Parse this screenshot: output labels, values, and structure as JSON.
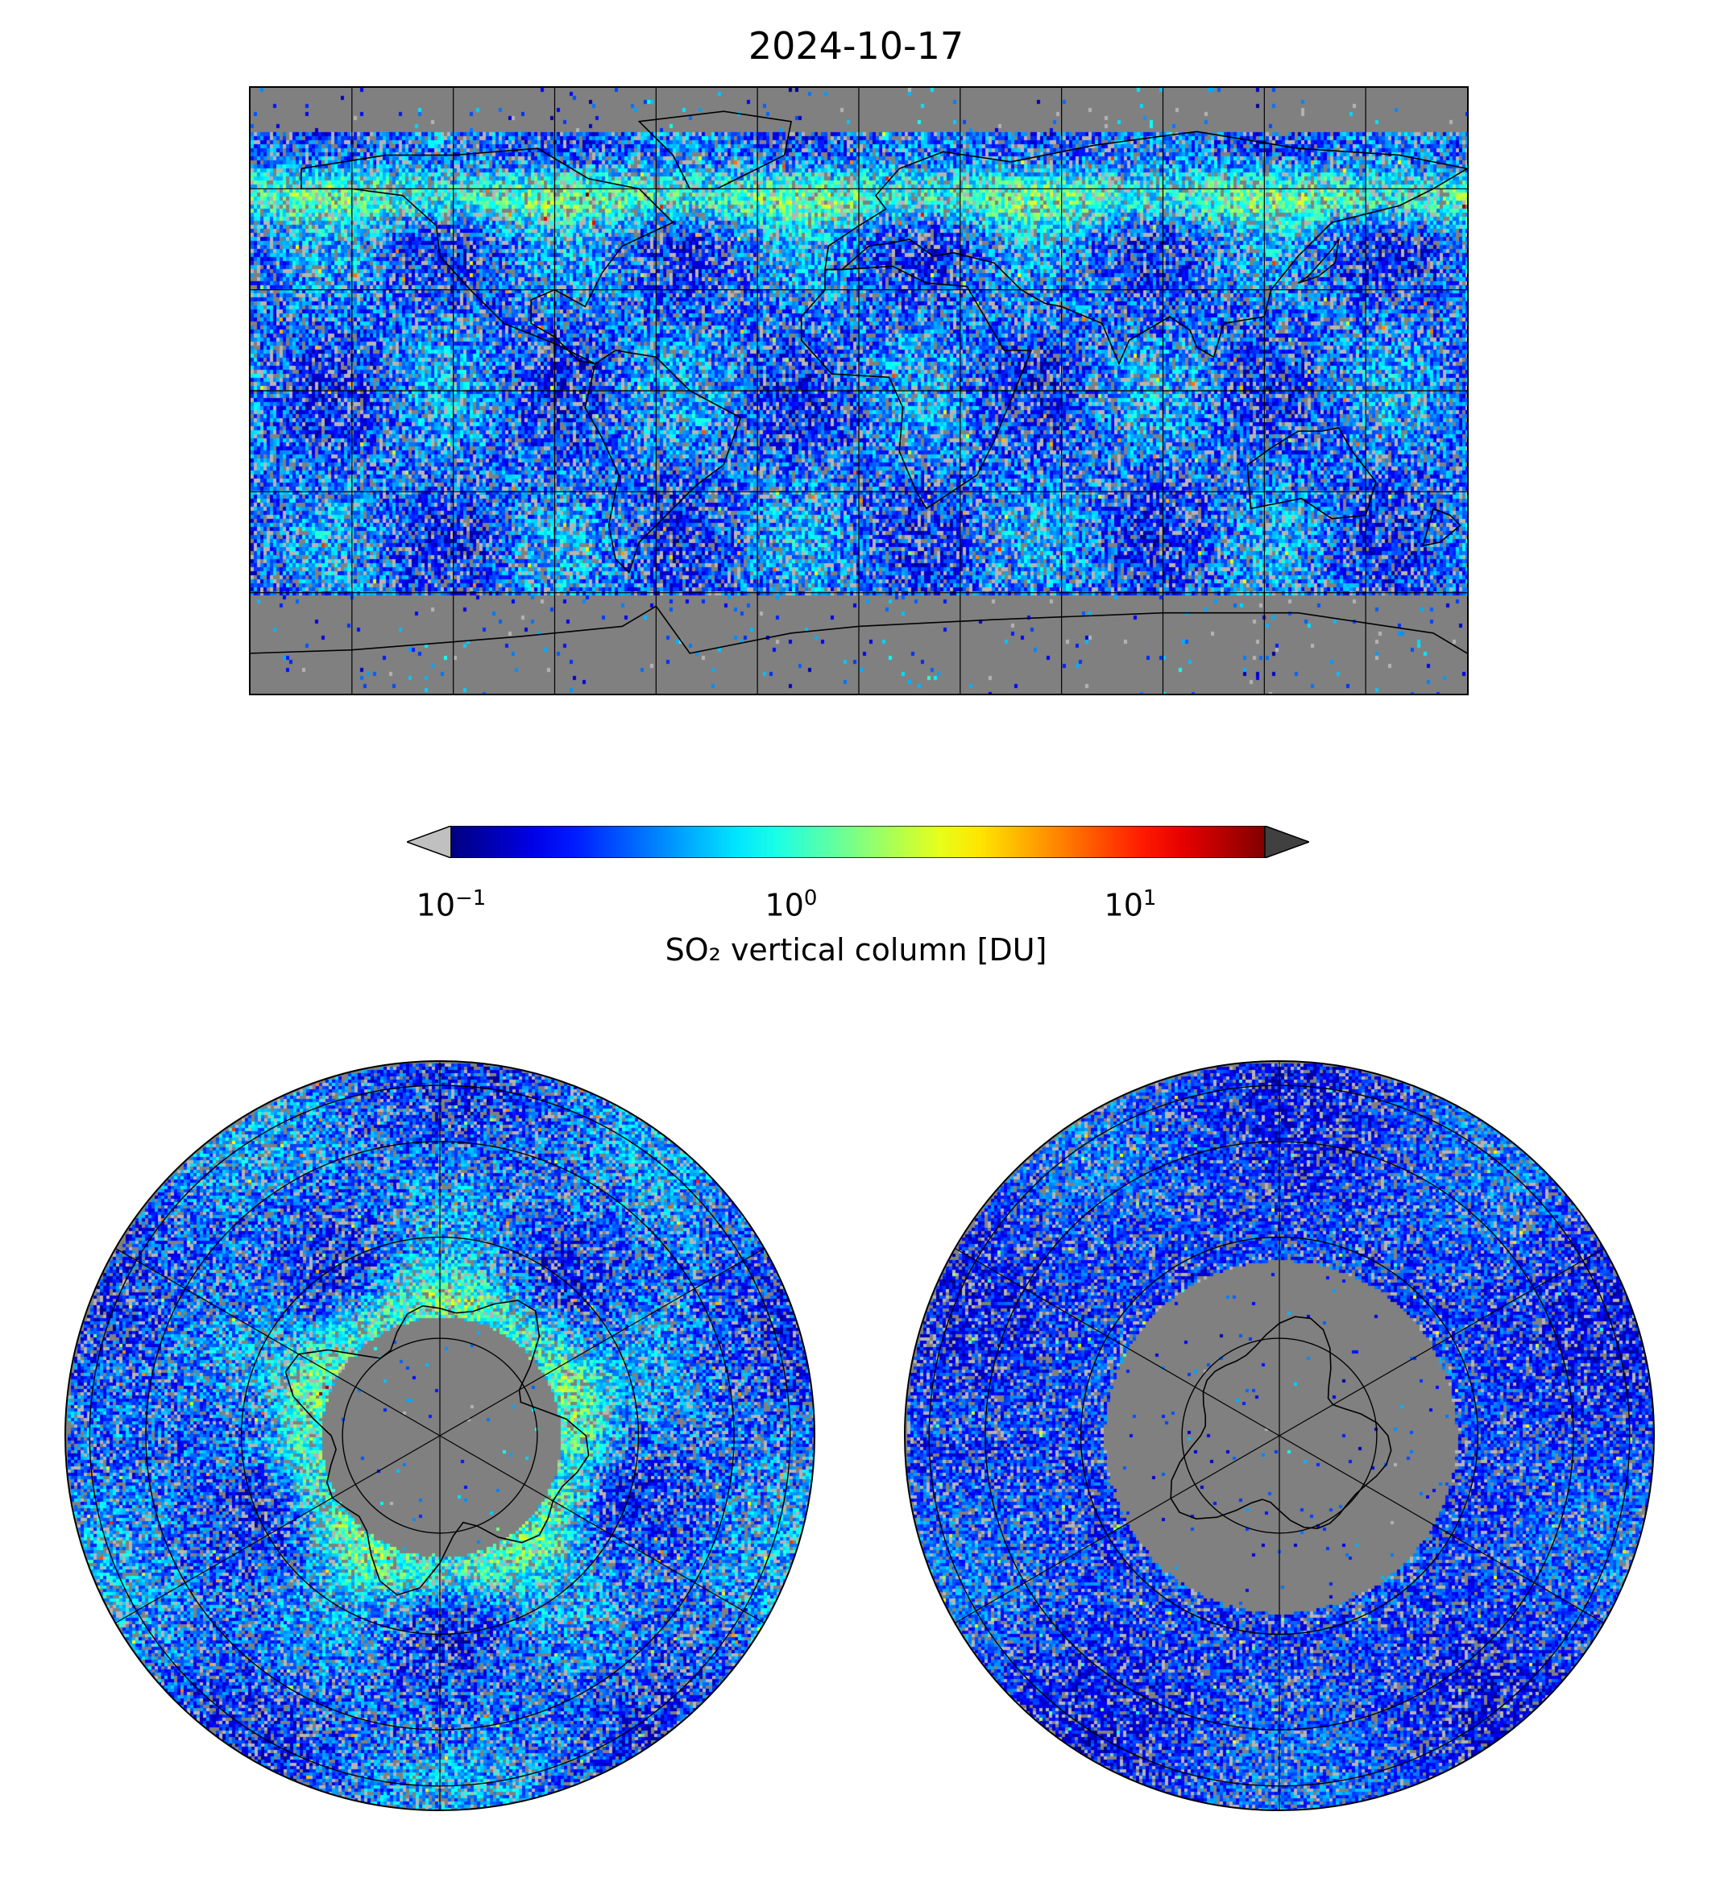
{
  "title": "2024-10-17",
  "colorbar": {
    "label": "SO₂ vertical column [DU]",
    "ticks": [
      {
        "base": "10",
        "exp": "−1",
        "value": 0.1
      },
      {
        "base": "10",
        "exp": "0",
        "value": 1
      },
      {
        "base": "10",
        "exp": "1",
        "value": 10
      }
    ],
    "range": [
      0.1,
      25
    ],
    "scale": "log",
    "colormap": "jet",
    "under_color": "#c0c0c0",
    "over_color": "#404040"
  },
  "colors": {
    "land_ocean_background": "#808080",
    "coastline": "#000000",
    "gridline": "#000000"
  },
  "maps": [
    {
      "name": "global-map",
      "projection": "plate-carree"
    },
    {
      "name": "north-polar-map",
      "projection": "north-polar-stereographic"
    },
    {
      "name": "south-polar-map",
      "projection": "south-polar-stereographic"
    }
  ]
}
